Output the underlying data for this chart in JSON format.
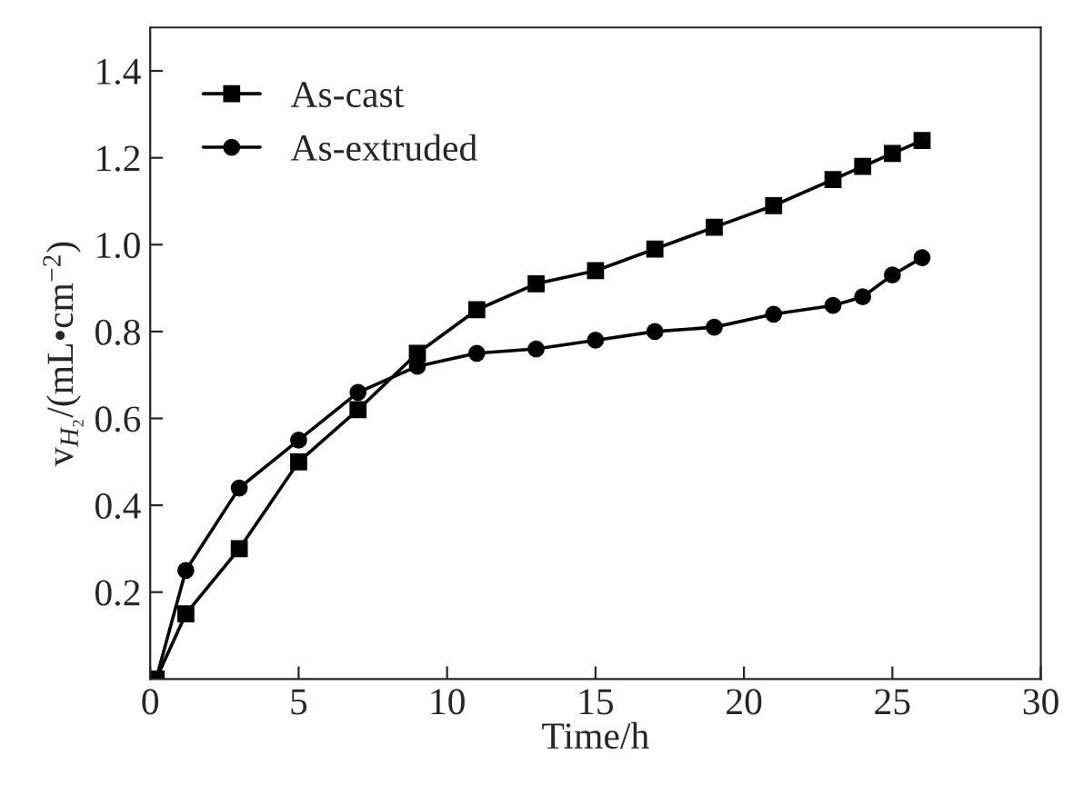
{
  "chart_data": {
    "type": "line",
    "xlabel": "Time/h",
    "ylabel": "v$_{H₂}$/(mL•cm$^{−2}$)",
    "xlim": [
      0,
      30
    ],
    "ylim": [
      0,
      1.5
    ],
    "xticks": [
      0,
      5,
      10,
      15,
      20,
      25,
      30
    ],
    "yticks": [
      0.2,
      0.4,
      0.6,
      0.8,
      {
        "value": 1,
        "label": "1.0"
      },
      1.2,
      1.4
    ],
    "grid": false,
    "legend": "top left",
    "line_style": "solid",
    "series": [
      {
        "name": "As-cast",
        "color": "#000000",
        "marker": "square",
        "x": [
          0.2,
          1.2,
          3,
          5,
          7,
          9,
          11,
          13,
          15,
          17,
          19,
          21,
          23,
          24,
          25,
          26
        ],
        "values": [
          0,
          0.15,
          0.3,
          0.5,
          0.62,
          0.75,
          0.85,
          0.91,
          0.94,
          0.99,
          1.04,
          1.09,
          1.15,
          1.18,
          1.21,
          1.24
        ]
      },
      {
        "name": "As-extruded",
        "color": "#000000",
        "marker": "circle",
        "x": [
          0.2,
          1.2,
          3,
          5,
          7,
          9,
          11,
          13,
          15,
          17,
          19,
          21,
          23,
          24,
          25,
          26
        ],
        "values": [
          0,
          0.25,
          0.44,
          0.55,
          0.66,
          0.72,
          0.75,
          0.76,
          0.78,
          0.8,
          0.81,
          0.84,
          0.86,
          0.88,
          0.93,
          0.97
        ]
      }
    ]
  }
}
